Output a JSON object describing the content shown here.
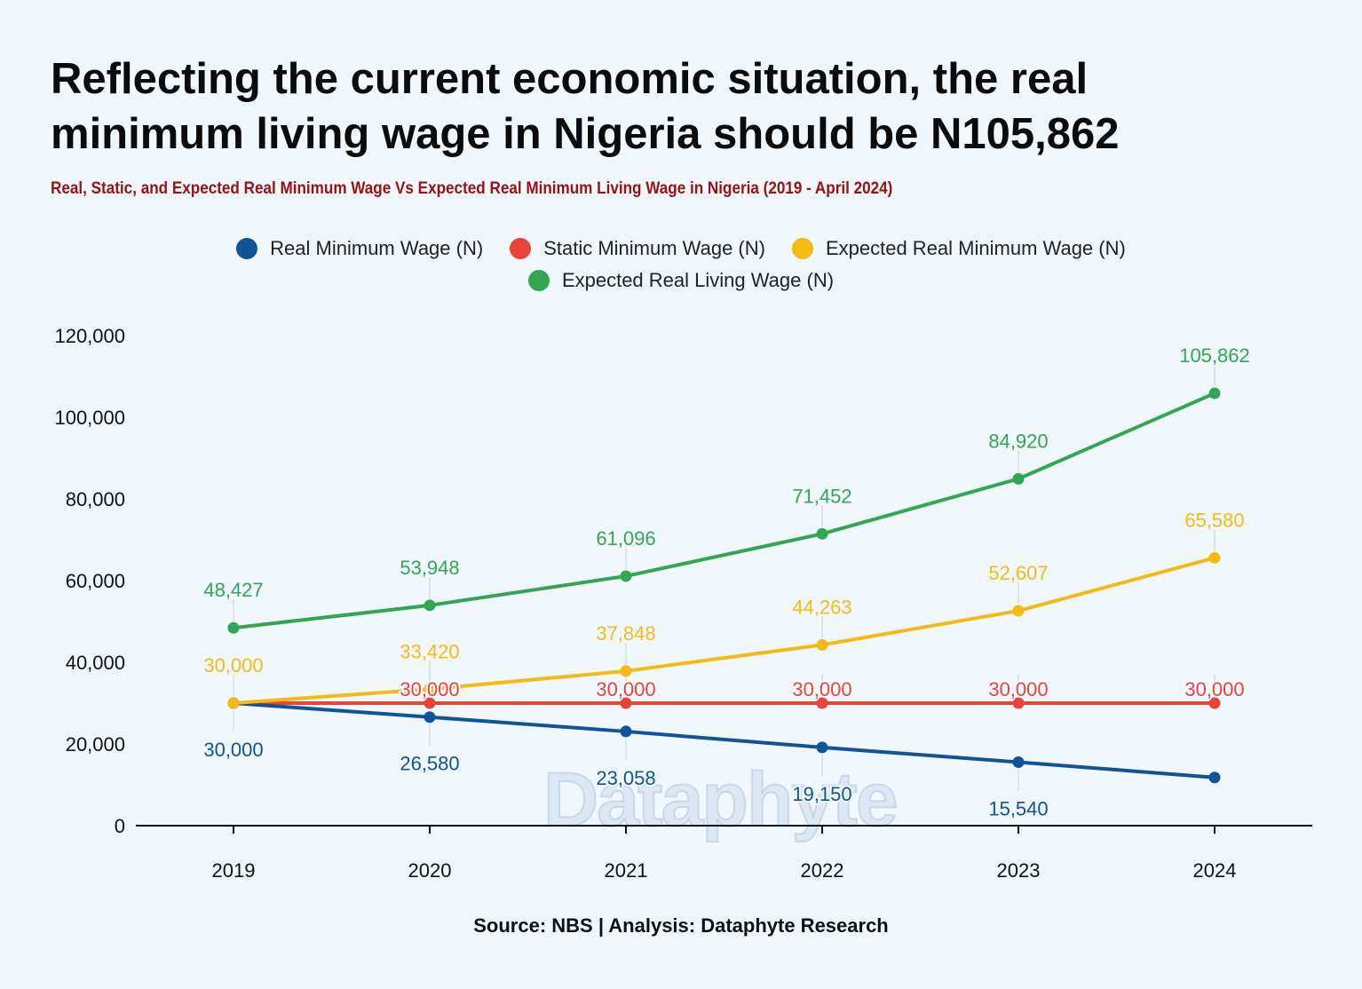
{
  "title_line1": "Reflecting the current economic situation, the real",
  "title_line2": "minimum living wage in Nigeria should be N105,862",
  "subtitle": "Real, Static, and Expected Real Minimum Wage Vs Expected Real Minimum Living Wage in Nigeria (2019 - April 2024)",
  "source": "Source: NBS | Analysis: Dataphyte Research",
  "watermark": "Dataphyte",
  "chart_data": {
    "type": "line",
    "title": "Reflecting the current economic situation, the real minimum living wage in Nigeria should be N105,862",
    "subtitle": "Real, Static, and Expected Real Minimum Wage Vs Expected Real Minimum Living Wage in Nigeria (2019 - April 2024)",
    "xlabel": "",
    "ylabel": "",
    "categories": [
      "2019",
      "2020",
      "2021",
      "2022",
      "2023",
      "2024"
    ],
    "ylim": [
      0,
      120000
    ],
    "yticks": [
      0,
      20000,
      40000,
      60000,
      80000,
      100000,
      120000
    ],
    "ytick_labels": [
      "0",
      "20,000",
      "40,000",
      "60,000",
      "80,000",
      "100,000",
      "120,000"
    ],
    "grid": false,
    "legend_position": "top-center",
    "series": [
      {
        "name": "Real Minimum Wage (N)",
        "color": "#0f5499",
        "values": [
          30000,
          26580,
          23058,
          19150,
          15540,
          11800
        ],
        "labels": [
          "30,000",
          "26,580",
          "23,058",
          "19,150",
          "15,540",
          ""
        ],
        "label_pos": "below"
      },
      {
        "name": "Static Minimum Wage (N)",
        "color": "#e8443a",
        "values": [
          30000,
          30000,
          30000,
          30000,
          30000,
          30000
        ],
        "labels": [
          "",
          "30,000",
          "30,000",
          "30,000",
          "30,000",
          "30,000"
        ],
        "label_pos": "above"
      },
      {
        "name": "Expected Real Minimum Wage (N)",
        "color": "#f6bb13",
        "values": [
          30000,
          33420,
          37848,
          44263,
          52607,
          65580
        ],
        "labels": [
          "30,000",
          "33,420",
          "37,848",
          "44,263",
          "52,607",
          "65,580"
        ],
        "label_pos": "above"
      },
      {
        "name": "Expected Real Living Wage (N)",
        "color": "#33a651",
        "values": [
          48427,
          53948,
          61096,
          71452,
          84920,
          105862
        ],
        "labels": [
          "48,427",
          "53,948",
          "61,096",
          "71,452",
          "84,920",
          "105,862"
        ],
        "label_pos": "above"
      }
    ]
  }
}
